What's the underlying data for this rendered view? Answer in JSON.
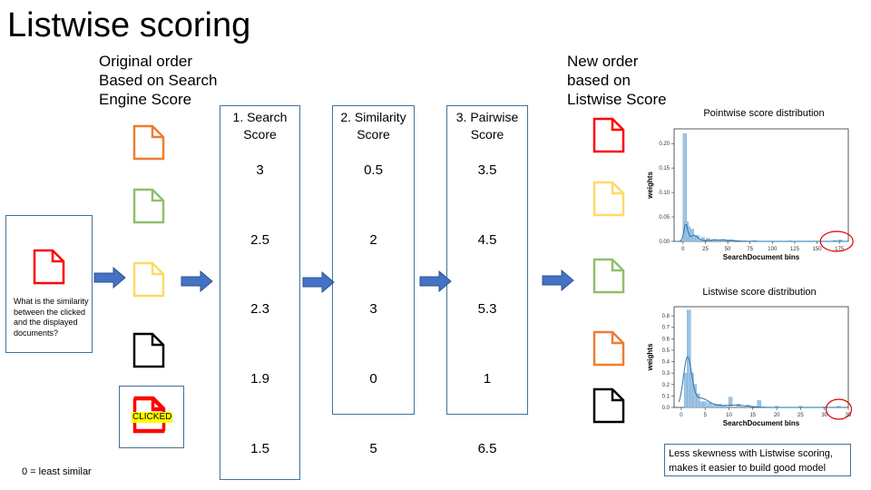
{
  "title": "Listwise scoring",
  "original_order_header": "Original order\nBased on Search\nEngine Score",
  "new_order_header": "New order\nbased on\nListwise Score",
  "query": {
    "text": "What is the similarity between the clicked and the displayed documents?",
    "doc_color": "#ff0000"
  },
  "clicked_label": "CLICKED",
  "note": "0 = least similar",
  "conclusion": "Less skewness with Listwise scoring, makes it easier to build good model",
  "doc_colors": {
    "orange": "#ed7d31",
    "green": "#8fbf6d",
    "yellow": "#ffd966",
    "black": "#000000",
    "red": "#ff0000"
  },
  "original_docs": [
    "orange",
    "green",
    "yellow",
    "black",
    "red"
  ],
  "new_docs": [
    "red",
    "yellow",
    "green",
    "orange",
    "black"
  ],
  "columns": [
    {
      "header": "1. Search\nScore",
      "values": [
        "3",
        "2.5",
        "2.3",
        "1.9",
        "1.5"
      ]
    },
    {
      "header": "2. Similarity\nScore",
      "values": [
        "0.5",
        "2",
        "3",
        "0",
        "5"
      ]
    },
    {
      "header": "3. Pairwise\nScore",
      "values": [
        "3.5",
        "4.5",
        "5.3",
        "1",
        "6.5"
      ]
    }
  ],
  "arrow_color": "#4472c4",
  "chart_data": [
    {
      "type": "bar",
      "title": "Pointwise score distribution",
      "xlabel": "SearchDocument bins",
      "ylabel": "weights",
      "xlim": [
        -10,
        185
      ],
      "ylim": [
        0,
        0.23
      ],
      "xticks": [
        "0",
        "25",
        "50",
        "75",
        "100",
        "125",
        "150",
        "175"
      ],
      "yticks": [
        "0.00",
        "0.05",
        "0.10",
        "0.15",
        "0.20"
      ],
      "bins_x": [
        2,
        4,
        6,
        8,
        10,
        12,
        16,
        22,
        28,
        35,
        45,
        55,
        80,
        120,
        170,
        176
      ],
      "values": [
        0.22,
        0.04,
        0.03,
        0.008,
        0.025,
        0.01,
        0.012,
        0.008,
        0.006,
        0.004,
        0.004,
        0.003,
        0.002,
        0.001,
        0.002,
        0.003
      ],
      "annotation": "circled tail near 175"
    },
    {
      "type": "bar",
      "title": "Listwise score distribution",
      "xlabel": "SearchDocument bins",
      "ylabel": "weights",
      "xlim": [
        -1.5,
        35
      ],
      "ylim": [
        0,
        0.88
      ],
      "xticks": [
        "0",
        "5",
        "10",
        "15",
        "20",
        "25",
        "30",
        "35"
      ],
      "yticks": [
        "0.0",
        "0.1",
        "0.2",
        "0.3",
        "0.4",
        "0.5",
        "0.6",
        "0.7",
        "0.8"
      ],
      "bins_x": [
        1,
        1.6,
        2.2,
        2.8,
        3.5,
        4.2,
        5,
        6,
        7,
        8,
        9,
        10.3,
        12,
        14,
        16.3,
        20,
        25,
        30,
        33
      ],
      "values": [
        0.3,
        0.85,
        0.3,
        0.2,
        0.12,
        0.05,
        0.05,
        0.04,
        0.03,
        0.03,
        0.02,
        0.09,
        0.03,
        0.02,
        0.06,
        0.01,
        0.01,
        0.005,
        0.01
      ],
      "annotation": "circled tail near 35"
    }
  ]
}
